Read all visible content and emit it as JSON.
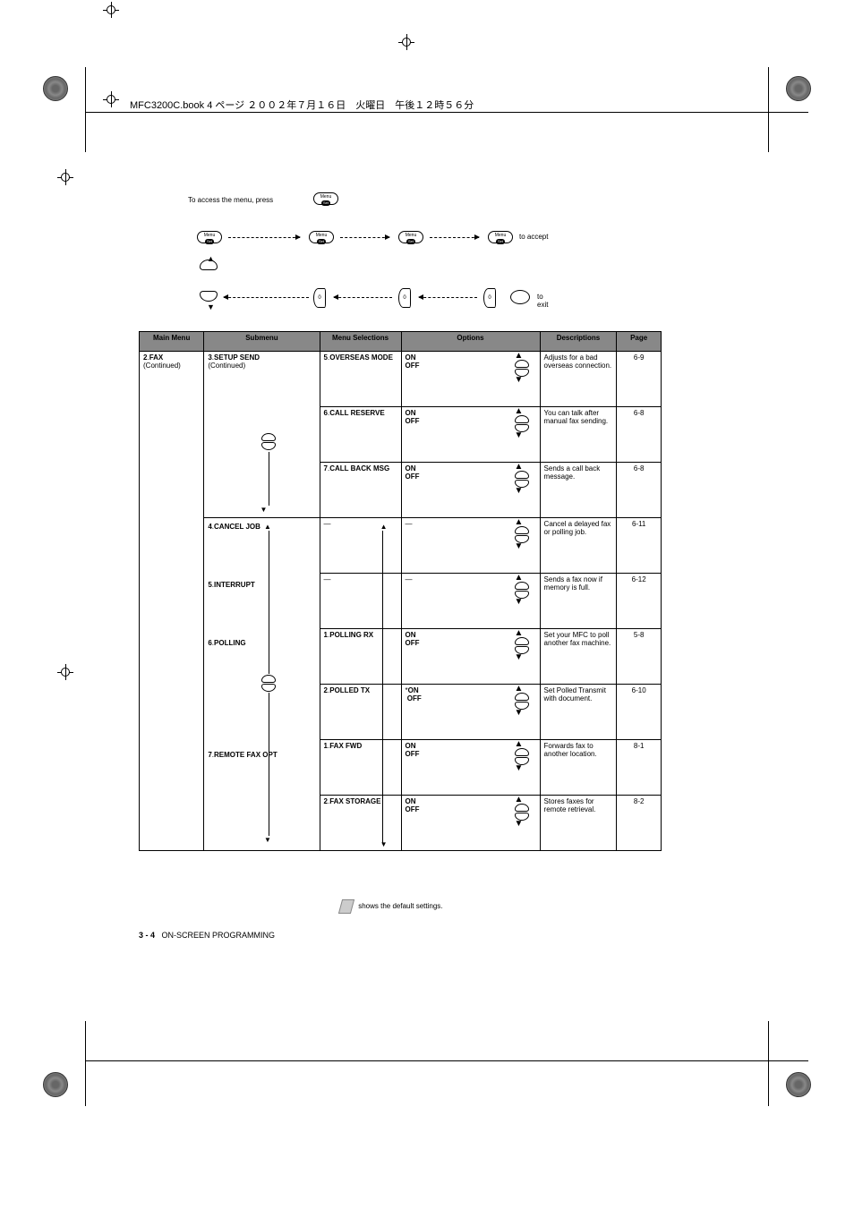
{
  "header": "MFC3200C.book  4 ページ  ２００２年７月１６日　火曜日　午後１２時５６分",
  "pageRef": "3 - 4",
  "pageRefBottom": "3 - 4   ON-SCREEN PROGRAMMING",
  "flowLabels": {
    "access": "To access the menu, press",
    "accept": "to accept",
    "exit": "to exit"
  },
  "table": {
    "headers": [
      "Main Menu",
      "Submenu",
      "Menu Selections",
      "Options",
      "Descriptions",
      "Page"
    ],
    "rows": [
      {
        "main": "2.FAX (Continued)",
        "sub": "3.SETUP SEND (Continued)",
        "sel": "5.OVERSEAS MODE",
        "opt": "ON\nOFF",
        "desc": "Adjusts for a bad overseas connection.",
        "page": "6-9"
      },
      {
        "main": "",
        "sub": "",
        "sel": "6.CALL RESERVE",
        "opt": "ON\nOFF",
        "desc": "You can talk after manual fax sending.",
        "page": "6-8"
      },
      {
        "main": "",
        "sub": "",
        "sel": "7.CALL BACK MSG",
        "opt": "ON\nOFF",
        "desc": "Sends a call back message.",
        "page": "6-8"
      },
      {
        "main": "",
        "sub": "4.CANCEL JOB",
        "sel": "—",
        "opt": "—",
        "desc": "Cancel a delayed fax or polling job.",
        "page": "6-11"
      },
      {
        "main": "",
        "sub": "5.INTERRUPT",
        "sel": "—",
        "opt": "—",
        "desc": "Sends a fax now if memory is full.",
        "page": "6-12"
      },
      {
        "main": "",
        "sub": "6.POLLING",
        "sel": "1.POLLING RX",
        "opt": "ON\nOFF",
        "desc": "Set your MFC to poll another fax machine.",
        "page": "5-8"
      },
      {
        "main": "",
        "sub": "",
        "sel": "2.POLLED TX",
        "opt": "*ON\nOFF",
        "desc": "Set Polled Transmit with document.",
        "page": "6-10"
      },
      {
        "main": "",
        "sub": "7.REMOTE FAX OPT",
        "sel": "1.FAX FWD",
        "opt": "ON\nOFF",
        "desc": "Forwards fax to another location.",
        "page": "8-1"
      },
      {
        "main": "",
        "sub": "",
        "sel": "2.FAX STORAGE",
        "opt": "ON\nOFF",
        "desc": "Stores faxes for remote retrieval.",
        "page": "8-2"
      }
    ]
  },
  "note": "shows the default settings.",
  "colors": {
    "headerBg": "#888888",
    "text": "#000000",
    "bg": "#ffffff"
  }
}
